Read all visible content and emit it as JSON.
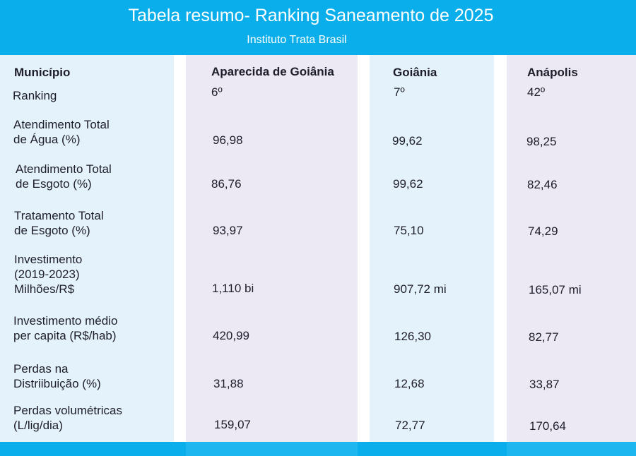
{
  "title": "Tabela resumo- Ranking Saneamento de 2025",
  "subtitle": "Instituto Trata Brasil",
  "colors": {
    "header_bg": "#0aaeea",
    "label_col_bg": "#e4f3fb",
    "alt_col_bg": "#ece9f5",
    "text": "#1e1e2a"
  },
  "table": {
    "corner_header": "Município",
    "municipalities": [
      "Aparecida de Goiânia",
      "Goiânia",
      "Anápolis"
    ],
    "rows": [
      {
        "label": "Ranking",
        "values": [
          "6º",
          "7º",
          "42º"
        ]
      },
      {
        "label": "Atendimento Total\nde Água (%)",
        "values": [
          "96,98",
          "99,62",
          "98,25"
        ]
      },
      {
        "label": "Atendimento Total\nde Esgoto (%)",
        "values": [
          "86,76",
          "99,62",
          "82,46"
        ]
      },
      {
        "label": "Tratamento Total\nde Esgoto (%)",
        "values": [
          "93,97",
          "75,10",
          "74,29"
        ]
      },
      {
        "label": "Investimento\n(2019-2023)\nMilhões/R$",
        "values": [
          "1,110 bi",
          "907,72 mi",
          "165,07 mi"
        ]
      },
      {
        "label": "Investimento médio\nper capita (R$/hab)",
        "values": [
          "420,99",
          "126,30",
          "82,77"
        ]
      },
      {
        "label": "Perdas na\nDistriibuição (%)",
        "values": [
          "31,88",
          "12,68",
          "33,87"
        ]
      },
      {
        "label": "Perdas volumétricas\n(L/lig/dia)",
        "values": [
          "159,07",
          "72,77",
          "170,64"
        ]
      }
    ]
  }
}
